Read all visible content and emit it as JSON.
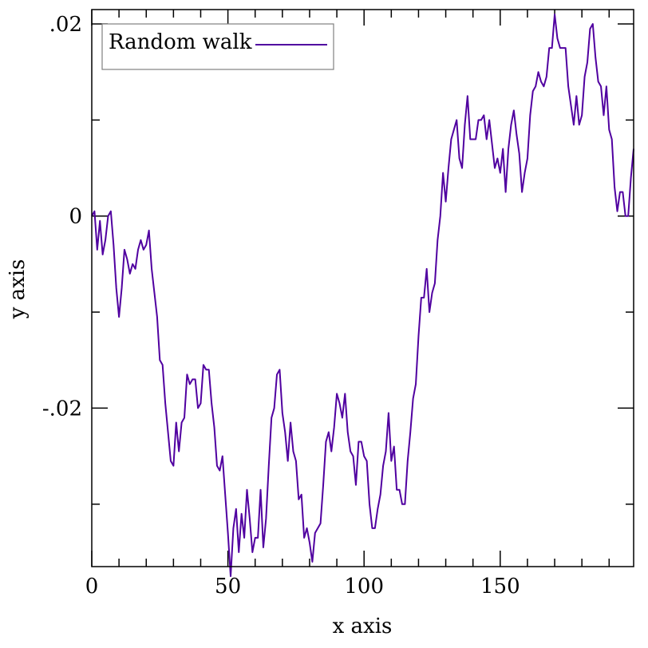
{
  "chart_data": {
    "type": "line",
    "title": "",
    "xlabel": "x axis",
    "ylabel": "y axis",
    "xlim": [
      0,
      199
    ],
    "ylim": [
      -0.0365,
      0.0215
    ],
    "grid": false,
    "legend_position": "top-left",
    "x_ticks": [
      {
        "value": 0,
        "label": "0"
      },
      {
        "value": 50,
        "label": "50"
      },
      {
        "value": 100,
        "label": "100"
      },
      {
        "value": 150,
        "label": "150"
      }
    ],
    "y_ticks": [
      {
        "value": -0.02,
        "label": "-.02"
      },
      {
        "value": 0,
        "label": "0"
      },
      {
        "value": 0.02,
        "label": ".02"
      }
    ],
    "series": [
      {
        "name": "Random walk",
        "color": "#5000a0",
        "values": [
          0.0,
          0.0005,
          -0.0035,
          -0.0005,
          -0.004,
          -0.0025,
          0.0,
          0.0005,
          -0.003,
          -0.0075,
          -0.0105,
          -0.0075,
          -0.0035,
          -0.0045,
          -0.006,
          -0.005,
          -0.0055,
          -0.0035,
          -0.0025,
          -0.0035,
          -0.003,
          -0.0015,
          -0.0055,
          -0.008,
          -0.0105,
          -0.015,
          -0.0155,
          -0.0195,
          -0.0225,
          -0.0255,
          -0.026,
          -0.0215,
          -0.0245,
          -0.0215,
          -0.021,
          -0.0165,
          -0.0175,
          -0.017,
          -0.017,
          -0.02,
          -0.0195,
          -0.0155,
          -0.016,
          -0.016,
          -0.0195,
          -0.022,
          -0.026,
          -0.0265,
          -0.025,
          -0.029,
          -0.033,
          -0.0375,
          -0.0325,
          -0.0305,
          -0.035,
          -0.031,
          -0.0335,
          -0.0285,
          -0.0315,
          -0.035,
          -0.0335,
          -0.0335,
          -0.0285,
          -0.0345,
          -0.0315,
          -0.026,
          -0.021,
          -0.02,
          -0.0165,
          -0.016,
          -0.0205,
          -0.0225,
          -0.0255,
          -0.0215,
          -0.0245,
          -0.0255,
          -0.0295,
          -0.029,
          -0.0335,
          -0.0325,
          -0.034,
          -0.036,
          -0.033,
          -0.0325,
          -0.032,
          -0.028,
          -0.0235,
          -0.0225,
          -0.0245,
          -0.022,
          -0.0185,
          -0.0195,
          -0.021,
          -0.0185,
          -0.0225,
          -0.0245,
          -0.025,
          -0.028,
          -0.0235,
          -0.0235,
          -0.025,
          -0.0255,
          -0.03,
          -0.0325,
          -0.0325,
          -0.0305,
          -0.029,
          -0.026,
          -0.0245,
          -0.0205,
          -0.0255,
          -0.024,
          -0.0285,
          -0.0285,
          -0.03,
          -0.03,
          -0.0255,
          -0.0225,
          -0.019,
          -0.0175,
          -0.0125,
          -0.0085,
          -0.0085,
          -0.0055,
          -0.01,
          -0.008,
          -0.007,
          -0.0025,
          0.0,
          0.0045,
          0.0015,
          0.005,
          0.008,
          0.009,
          0.01,
          0.006,
          0.005,
          0.0095,
          0.0125,
          0.008,
          0.008,
          0.008,
          0.01,
          0.01,
          0.0105,
          0.008,
          0.01,
          0.0075,
          0.005,
          0.006,
          0.0045,
          0.007,
          0.0025,
          0.007,
          0.0095,
          0.011,
          0.0085,
          0.0065,
          0.0025,
          0.0045,
          0.006,
          0.0105,
          0.013,
          0.0135,
          0.015,
          0.014,
          0.0135,
          0.0145,
          0.0175,
          0.0175,
          0.021,
          0.0185,
          0.0175,
          0.0175,
          0.0175,
          0.0135,
          0.0115,
          0.0095,
          0.0125,
          0.0095,
          0.0105,
          0.0145,
          0.016,
          0.0195,
          0.02,
          0.0165,
          0.014,
          0.0135,
          0.0105,
          0.0135,
          0.009,
          0.008,
          0.003,
          0.0005,
          0.0025,
          0.0025,
          0.0,
          0.0,
          0.004,
          0.007
        ]
      }
    ]
  }
}
